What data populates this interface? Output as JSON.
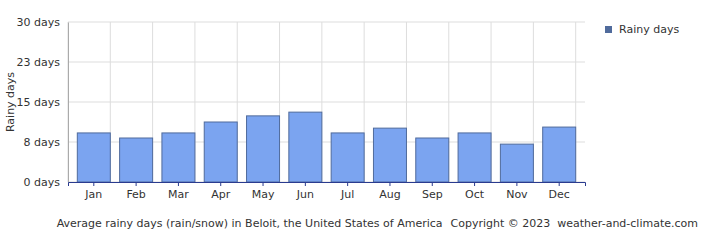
{
  "chart_data": {
    "type": "bar",
    "title": "Average rainy days (rain/snow) in Beloit, the United States of America",
    "annotations": [
      "Copyright © 2023  weather-and-climate.com"
    ],
    "y_label": "Rainy days",
    "categories": [
      "Jan",
      "Feb",
      "Mar",
      "Apr",
      "May",
      "Jun",
      "Jul",
      "Aug",
      "Sep",
      "Oct",
      "Nov",
      "Dec"
    ],
    "series": [
      {
        "name": "Rainy days",
        "color": "#7ba4f0",
        "values": [
          9.2,
          8.25,
          9.2,
          11.25,
          12.4,
          13.1,
          9.2,
          10.1,
          8.25,
          9.2,
          7.1,
          10.3
        ]
      }
    ],
    "ylim": [
      0,
      30
    ],
    "yticks": [
      {
        "value": 0,
        "label": "0 days"
      },
      {
        "value": 7.5,
        "label": "8 days"
      },
      {
        "value": 15,
        "label": "15 days"
      },
      {
        "value": 22.5,
        "label": "23 days"
      },
      {
        "value": 30,
        "label": "30 days"
      }
    ],
    "grid": true,
    "legend": "right"
  }
}
